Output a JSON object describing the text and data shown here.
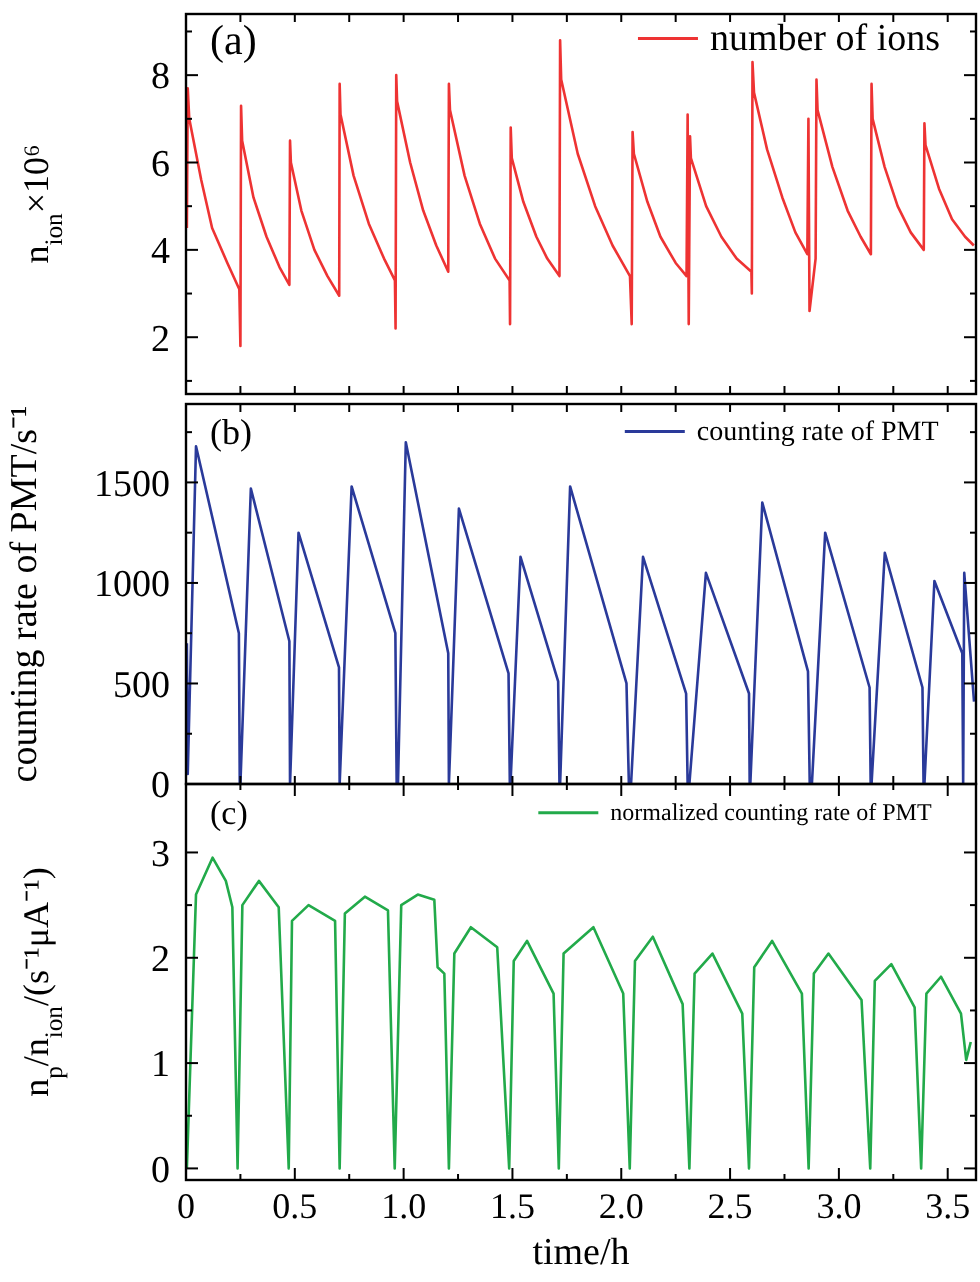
{
  "chart_data": [
    {
      "type": "line",
      "ylabel": "n$_{ion}$×10⁶",
      "annotations": [
        "(a)"
      ],
      "legend": "top right",
      "tick_labels": "y",
      "xlim": [
        0,
        3.63
      ],
      "xticks": [
        {
          "value": 0,
          "label": null
        },
        {
          "value": 0.25,
          "label": null
        },
        {
          "value": 0.5,
          "label": null
        },
        {
          "value": 0.75,
          "label": null
        },
        {
          "value": 1,
          "label": null
        },
        {
          "value": 1.25,
          "label": null
        },
        {
          "value": 1.5,
          "label": null
        },
        {
          "value": 1.75,
          "label": null
        },
        {
          "value": 2,
          "label": null
        },
        {
          "value": 2.25,
          "label": null
        },
        {
          "value": 2.5,
          "label": null
        },
        {
          "value": 2.75,
          "label": null
        },
        {
          "value": 3,
          "label": null
        },
        {
          "value": 3.25,
          "label": null
        },
        {
          "value": 3.5,
          "label": null
        }
      ],
      "ylim": [
        0.7,
        9.4
      ],
      "yticks": [
        {
          "value": 1,
          "label": null
        },
        2,
        {
          "value": 3,
          "label": null
        },
        4,
        {
          "value": 5,
          "label": null
        },
        6,
        {
          "value": 7,
          "label": null
        },
        8,
        {
          "value": 9,
          "label": null
        }
      ],
      "series": [
        {
          "name": "number of ions",
          "color": "#ee3333",
          "x": [
            0.004,
            0.008,
            0.015,
            0.07,
            0.12,
            0.19,
            0.245,
            0.25,
            0.253,
            0.258,
            0.31,
            0.37,
            0.43,
            0.475,
            0.478,
            0.482,
            0.53,
            0.59,
            0.65,
            0.704,
            0.706,
            0.71,
            0.77,
            0.84,
            0.91,
            0.96,
            0.963,
            0.966,
            0.97,
            1.03,
            1.09,
            1.15,
            1.205,
            1.208,
            1.213,
            1.28,
            1.35,
            1.42,
            1.487,
            1.489,
            1.492,
            1.497,
            1.55,
            1.61,
            1.66,
            1.716,
            1.719,
            1.724,
            1.8,
            1.88,
            1.96,
            2.04,
            2.048,
            2.052,
            2.058,
            2.12,
            2.18,
            2.25,
            2.3,
            2.305,
            2.31,
            2.316,
            2.32,
            2.39,
            2.46,
            2.53,
            2.598,
            2.6,
            2.603,
            2.61,
            2.67,
            2.74,
            2.8,
            2.855,
            2.86,
            2.865,
            2.893,
            2.897,
            2.902,
            2.97,
            3.04,
            3.1,
            3.147,
            3.15,
            3.155,
            3.21,
            3.27,
            3.33,
            3.39,
            3.393,
            3.398,
            3.46,
            3.52,
            3.58,
            3.62
          ],
          "values": [
            4.5,
            7.7,
            7.0,
            5.6,
            4.5,
            3.7,
            3.1,
            1.8,
            7.3,
            6.5,
            5.2,
            4.3,
            3.6,
            3.2,
            6.5,
            6.0,
            4.9,
            4.0,
            3.4,
            2.95,
            7.8,
            7.1,
            5.7,
            4.6,
            3.8,
            3.3,
            2.2,
            8.0,
            7.4,
            6.0,
            4.9,
            4.1,
            3.5,
            7.8,
            7.2,
            5.7,
            4.6,
            3.8,
            3.3,
            2.3,
            6.8,
            6.1,
            5.1,
            4.3,
            3.8,
            3.4,
            8.8,
            7.9,
            6.2,
            5.0,
            4.1,
            3.4,
            2.3,
            6.7,
            6.2,
            5.1,
            4.3,
            3.7,
            3.4,
            7.1,
            2.3,
            6.6,
            6.1,
            5.0,
            4.3,
            3.8,
            3.5,
            3.0,
            8.3,
            7.6,
            6.3,
            5.2,
            4.4,
            3.9,
            7.0,
            2.6,
            3.8,
            7.9,
            7.2,
            5.9,
            4.9,
            4.3,
            3.9,
            7.8,
            7.0,
            5.9,
            5.0,
            4.4,
            4.0,
            6.9,
            6.4,
            5.4,
            4.7,
            4.3,
            4.1
          ]
        }
      ]
    },
    {
      "type": "line",
      "ylabel": "counting rate of PMT/s⁻¹",
      "annotations": [
        "(b)"
      ],
      "legend": "top right",
      "tick_labels": "y",
      "xlim": [
        0,
        3.63
      ],
      "xticks": [
        {
          "value": 0,
          "label": null
        },
        {
          "value": 0.25,
          "label": null
        },
        {
          "value": 0.5,
          "label": null
        },
        {
          "value": 0.75,
          "label": null
        },
        {
          "value": 1,
          "label": null
        },
        {
          "value": 1.25,
          "label": null
        },
        {
          "value": 1.5,
          "label": null
        },
        {
          "value": 1.75,
          "label": null
        },
        {
          "value": 2,
          "label": null
        },
        {
          "value": 2.25,
          "label": null
        },
        {
          "value": 2.5,
          "label": null
        },
        {
          "value": 2.75,
          "label": null
        },
        {
          "value": 3,
          "label": null
        },
        {
          "value": 3.25,
          "label": null
        },
        {
          "value": 3.5,
          "label": null
        }
      ],
      "ylim": [
        0,
        1890
      ],
      "yticks": [
        0,
        {
          "value": 250,
          "label": null
        },
        500,
        {
          "value": 750,
          "label": null
        },
        1000,
        {
          "value": 1250,
          "label": null
        },
        1500,
        {
          "value": 1750,
          "label": null
        }
      ],
      "series": [
        {
          "name": "counting rate of PMT",
          "color": "#2a3a9a",
          "x": [
            0.004,
            0.008,
            0.046,
            0.243,
            0.247,
            0.25,
            0.298,
            0.475,
            0.478,
            0.517,
            0.703,
            0.706,
            0.761,
            0.962,
            0.968,
            0.974,
            1.01,
            1.205,
            1.208,
            1.254,
            1.482,
            1.488,
            1.491,
            1.537,
            1.71,
            1.716,
            1.719,
            1.765,
            2.024,
            2.035,
            2.045,
            2.1,
            2.298,
            2.305,
            2.313,
            2.389,
            2.587,
            2.59,
            2.593,
            2.648,
            2.858,
            2.866,
            2.876,
            2.937,
            3.141,
            3.146,
            3.15,
            3.211,
            3.384,
            3.389,
            3.393,
            3.439,
            3.567,
            3.571,
            3.576,
            3.621
          ],
          "values": [
            700,
            50,
            1680,
            750,
            0,
            0,
            1470,
            710,
            0,
            1250,
            580,
            0,
            1480,
            750,
            0,
            0,
            1700,
            650,
            0,
            1370,
            550,
            0,
            0,
            1130,
            510,
            0,
            0,
            1480,
            500,
            0,
            0,
            1130,
            450,
            0,
            0,
            1050,
            450,
            0,
            0,
            1400,
            560,
            0,
            0,
            1250,
            480,
            0,
            0,
            1150,
            480,
            0,
            0,
            1010,
            650,
            0,
            1050,
            410
          ]
        }
      ]
    },
    {
      "type": "line",
      "xlabel": "time/h",
      "ylabel": "n$_{p}$/n$_{ion}$/(s⁻¹μA⁻¹)",
      "annotations": [
        "(c)"
      ],
      "legend": "top right",
      "xlim": [
        0,
        3.63
      ],
      "xticks": [
        {
          "value": 0,
          "label": "0"
        },
        {
          "value": 0.25,
          "label": null
        },
        {
          "value": 0.5,
          "label": "0.5"
        },
        {
          "value": 0.75,
          "label": null
        },
        {
          "value": 1,
          "label": "1.0"
        },
        {
          "value": 1.25,
          "label": null
        },
        {
          "value": 1.5,
          "label": "1.5"
        },
        {
          "value": 1.75,
          "label": null
        },
        {
          "value": 2,
          "label": "2.0"
        },
        {
          "value": 2.25,
          "label": null
        },
        {
          "value": 2.5,
          "label": "2.5"
        },
        {
          "value": 2.75,
          "label": null
        },
        {
          "value": 3,
          "label": "3.0"
        },
        {
          "value": 3.25,
          "label": null
        },
        {
          "value": 3.5,
          "label": "3.5"
        }
      ],
      "ylim": [
        -0.11,
        3.65
      ],
      "yticks": [
        0,
        {
          "value": 0.5,
          "label": null
        },
        1,
        {
          "value": 1.5,
          "label": null
        },
        2,
        {
          "value": 2.5,
          "label": null
        },
        3
      ],
      "series": [
        {
          "name": "normalized counting rate of PMT",
          "color": "#22aa4a",
          "x": [
            0.004,
            0.046,
            0.122,
            0.183,
            0.213,
            0.237,
            0.259,
            0.335,
            0.426,
            0.472,
            0.487,
            0.563,
            0.685,
            0.706,
            0.73,
            0.822,
            0.928,
            0.959,
            0.989,
            1.065,
            1.141,
            1.156,
            1.187,
            1.208,
            1.233,
            1.309,
            1.43,
            1.485,
            1.506,
            1.567,
            1.689,
            1.713,
            1.735,
            1.872,
            2.009,
            2.039,
            2.063,
            2.145,
            2.282,
            2.313,
            2.337,
            2.419,
            2.556,
            2.587,
            2.611,
            2.693,
            2.83,
            2.861,
            2.885,
            2.952,
            3.104,
            3.144,
            3.165,
            3.241,
            3.348,
            3.378,
            3.402,
            3.469,
            3.561,
            3.585,
            3.606
          ],
          "values": [
            0,
            2.6,
            2.95,
            2.73,
            2.48,
            0,
            2.5,
            2.73,
            2.48,
            0,
            2.35,
            2.5,
            2.35,
            0,
            2.42,
            2.58,
            2.45,
            0,
            2.5,
            2.6,
            2.55,
            1.91,
            1.85,
            0,
            2.04,
            2.29,
            2.1,
            0,
            1.97,
            2.16,
            1.66,
            0,
            2.04,
            2.29,
            1.66,
            0,
            1.97,
            2.2,
            1.56,
            0,
            1.85,
            2.04,
            1.47,
            0,
            1.91,
            2.16,
            1.66,
            0,
            1.85,
            2.04,
            1.6,
            0,
            1.78,
            1.94,
            1.53,
            0,
            1.66,
            1.82,
            1.47,
            1.03,
            1.2
          ]
        }
      ]
    }
  ]
}
